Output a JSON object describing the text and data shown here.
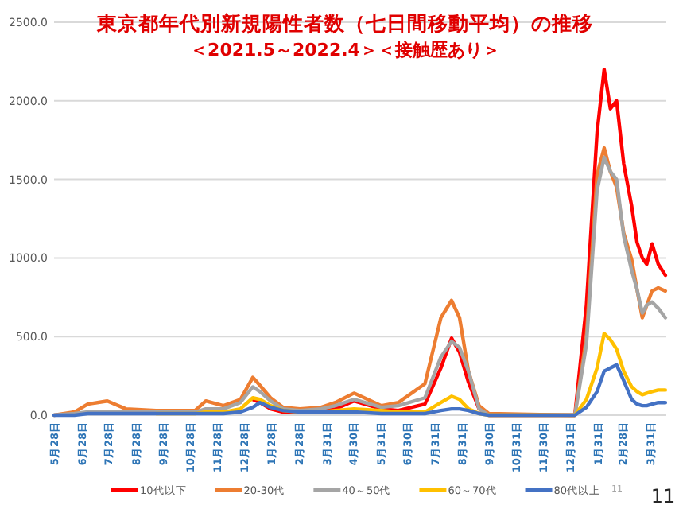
{
  "chart_data": {
    "type": "line",
    "title": "東京都年代別新規陽性者数（七日間移動平均）の推移",
    "subtitle": "＜2021.5～2022.4＞＜接触歴あり＞",
    "x": [
      "2020-05-28",
      "2020-06-20",
      "2020-07-05",
      "2020-07-27",
      "2020-08-17",
      "2020-09-20",
      "2020-11-03",
      "2020-11-15",
      "2020-12-05",
      "2020-12-24",
      "2021-01-07",
      "2021-01-15",
      "2021-01-27",
      "2021-02-10",
      "2021-03-01",
      "2021-03-25",
      "2021-04-10",
      "2021-05-01",
      "2021-06-01",
      "2021-06-20",
      "2021-07-20",
      "2021-08-07",
      "2021-08-19",
      "2021-08-28",
      "2021-09-07",
      "2021-09-19",
      "2021-09-30",
      "2021-12-31",
      "2022-01-05",
      "2022-01-18",
      "2022-01-30",
      "2022-02-07",
      "2022-02-14",
      "2022-02-21",
      "2022-03-01",
      "2022-03-10",
      "2022-03-16",
      "2022-03-22",
      "2022-03-27",
      "2022-04-02",
      "2022-04-09",
      "2022-04-17"
    ],
    "series": [
      {
        "name": "10代以下",
        "color": "#ff0000",
        "values": [
          null,
          null,
          null,
          null,
          null,
          null,
          null,
          null,
          null,
          null,
          100,
          80,
          40,
          20,
          20,
          30,
          40,
          90,
          40,
          30,
          70,
          300,
          490,
          400,
          210,
          40,
          0,
          0,
          0,
          700,
          1800,
          2200,
          1950,
          2000,
          1600,
          1330,
          1100,
          1000,
          960,
          1090,
          960,
          890
        ]
      },
      {
        "name": "20-30代",
        "color": "#ed7d31",
        "values": [
          0,
          20,
          70,
          90,
          40,
          30,
          30,
          90,
          60,
          100,
          240,
          190,
          110,
          50,
          40,
          50,
          80,
          140,
          60,
          80,
          200,
          620,
          730,
          620,
          280,
          60,
          10,
          0,
          0,
          500,
          1530,
          1700,
          1550,
          1450,
          1160,
          990,
          800,
          620,
          700,
          790,
          810,
          790
        ]
      },
      {
        "name": "40～50代",
        "color": "#a5a5a5",
        "values": [
          0,
          10,
          20,
          20,
          20,
          20,
          20,
          40,
          40,
          80,
          180,
          150,
          90,
          40,
          30,
          40,
          60,
          100,
          50,
          60,
          110,
          370,
          470,
          430,
          280,
          40,
          0,
          0,
          0,
          450,
          1430,
          1640,
          1550,
          1500,
          1140,
          920,
          800,
          650,
          700,
          720,
          680,
          620
        ]
      },
      {
        "name": "60～70代",
        "color": "#ffc000",
        "values": [
          null,
          null,
          null,
          null,
          null,
          10,
          10,
          20,
          20,
          40,
          110,
          100,
          60,
          30,
          20,
          20,
          30,
          40,
          30,
          20,
          20,
          80,
          120,
          100,
          40,
          10,
          0,
          0,
          0,
          100,
          300,
          520,
          480,
          420,
          280,
          180,
          150,
          130,
          140,
          150,
          160,
          160
        ]
      },
      {
        "name": "80代以上",
        "color": "#4472c4",
        "values": [
          0,
          0,
          10,
          10,
          10,
          10,
          10,
          10,
          10,
          20,
          50,
          80,
          50,
          30,
          20,
          20,
          20,
          20,
          10,
          10,
          10,
          30,
          40,
          40,
          30,
          10,
          0,
          0,
          0,
          50,
          150,
          280,
          300,
          320,
          220,
          100,
          70,
          60,
          60,
          70,
          80,
          80
        ]
      }
    ],
    "xlim": [
      "2020-05-28",
      "2022-04-18"
    ],
    "xticks": [
      {
        "value": "2020-05-28",
        "label": "5月28日"
      },
      {
        "value": "2020-06-28",
        "label": "6月28日"
      },
      {
        "value": "2020-07-28",
        "label": "7月28日"
      },
      {
        "value": "2020-08-28",
        "label": "8月28日"
      },
      {
        "value": "2020-09-28",
        "label": "9月28日"
      },
      {
        "value": "2020-10-28",
        "label": "10月28日"
      },
      {
        "value": "2020-11-28",
        "label": "11月28日"
      },
      {
        "value": "2020-12-28",
        "label": "12月28日"
      },
      {
        "value": "2021-01-28",
        "label": "1月28日"
      },
      {
        "value": "2021-02-28",
        "label": "2月28日"
      },
      {
        "value": "2021-03-31",
        "label": "3月31日"
      },
      {
        "value": "2021-04-30",
        "label": "4月30日"
      },
      {
        "value": "2021-05-31",
        "label": "5月31日"
      },
      {
        "value": "2021-06-30",
        "label": "6月30日"
      },
      {
        "value": "2021-07-31",
        "label": "7月31日"
      },
      {
        "value": "2021-08-31",
        "label": "8月31日"
      },
      {
        "value": "2021-09-30",
        "label": "9月30日"
      },
      {
        "value": "2021-10-31",
        "label": "10月31日"
      },
      {
        "value": "2021-11-30",
        "label": "11月30日"
      },
      {
        "value": "2021-12-31",
        "label": "12月31日"
      },
      {
        "value": "2022-01-31",
        "label": "1月31日"
      },
      {
        "value": "2022-02-28",
        "label": "2月28日"
      },
      {
        "value": "2022-03-31",
        "label": "3月31日"
      }
    ],
    "ylim": [
      0,
      2500
    ],
    "yticks": [
      {
        "value": 0,
        "label": "0.0"
      },
      {
        "value": 500,
        "label": "500.0"
      },
      {
        "value": 1000,
        "label": "1000.0"
      },
      {
        "value": 1500,
        "label": "1500.0"
      },
      {
        "value": 2000,
        "label": "2000.0"
      },
      {
        "value": 2500,
        "label": "2500.0"
      }
    ],
    "grid": "y",
    "legend": "bottom",
    "marker": "none",
    "line_style": "solid",
    "annotations": [
      "11",
      "11"
    ]
  }
}
